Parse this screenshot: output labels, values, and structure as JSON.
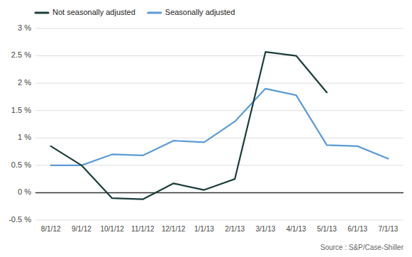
{
  "chart_data": {
    "type": "line",
    "categories": [
      "8/1/12",
      "9/1/12",
      "10/1/12",
      "11/1/12",
      "12/1/12",
      "1/1/13",
      "2/1/13",
      "3/1/13",
      "4/1/13",
      "5/1/13",
      "6/1/13",
      "7/1/13"
    ],
    "series": [
      {
        "name": "Not seasonally adjusted",
        "color": "#1a3d3a",
        "values": [
          0.0085,
          0.005,
          -0.001,
          -0.0012,
          0.0017,
          0.0005,
          0.0025,
          0.0257,
          0.025,
          0.0183,
          null,
          null
        ]
      },
      {
        "name": "Seasonally adjusted",
        "color": "#5b9bd5",
        "values": [
          0.005,
          0.005,
          0.007,
          0.0068,
          0.0095,
          0.0092,
          0.013,
          0.019,
          0.0178,
          0.0087,
          0.0085,
          0.0062
        ]
      }
    ],
    "ylim": [
      -0.005,
      0.03
    ],
    "yticks": [
      {
        "value": -0.005,
        "label": "-0.5 %"
      },
      {
        "value": 0.0,
        "label": "0 %"
      },
      {
        "value": 0.005,
        "label": "0.5 %"
      },
      {
        "value": 0.01,
        "label": "1 %"
      },
      {
        "value": 0.015,
        "label": "1.5 %"
      },
      {
        "value": 0.02,
        "label": "2 %"
      },
      {
        "value": 0.025,
        "label": "2.5 %"
      },
      {
        "value": 0.03,
        "label": "3 %"
      }
    ],
    "grid": true,
    "legend": "upper left",
    "annotations": [
      "Source : S&P/Case-Shiller"
    ]
  }
}
